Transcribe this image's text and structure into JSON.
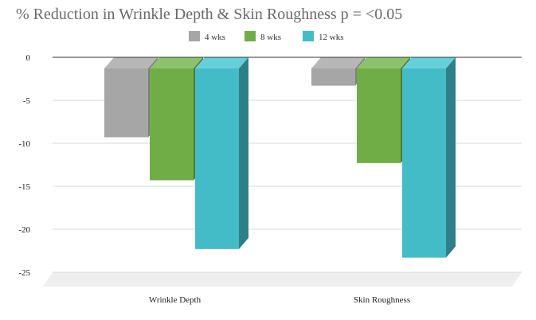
{
  "chart_data": {
    "type": "bar",
    "title": "% Reduction in Wrinkle Depth & Skin Roughness p = <0.05",
    "categories": [
      "Wrinkle Depth",
      "Skin Roughness"
    ],
    "series": [
      {
        "name": "4 wks",
        "values": [
          -9.3,
          -3.3
        ],
        "color": "#a6a6a6",
        "side_color": "#7f7f7f",
        "top_color": "#b7b7b7"
      },
      {
        "name": "8 wks",
        "values": [
          -14.3,
          -12.3
        ],
        "color": "#70ad47",
        "side_color": "#4e7a31",
        "top_color": "#8cc36a"
      },
      {
        "name": "12 wks",
        "values": [
          -22.3,
          -23.3
        ],
        "color": "#44bcc7",
        "side_color": "#2f7f88",
        "top_color": "#66d0da"
      }
    ],
    "ylim": [
      -25,
      0
    ],
    "yticks": [
      0,
      -5,
      -10,
      -15,
      -20,
      -25
    ],
    "xlabel": "",
    "ylabel": "",
    "legend_position": "top-center",
    "grid": true
  }
}
